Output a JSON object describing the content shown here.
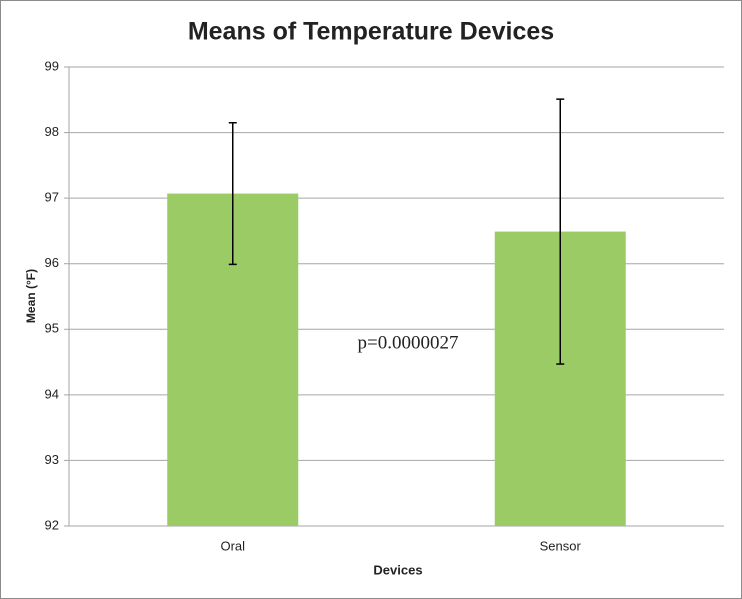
{
  "chart_data": {
    "type": "bar",
    "title": "Means of Temperature Devices",
    "x_label": "Devices",
    "y_label": "Mean (°F)",
    "categories": [
      "Oral",
      "Sensor"
    ],
    "values": [
      97.07,
      96.49
    ],
    "errors": [
      1.08,
      2.02
    ],
    "color": "#9bcb65",
    "error_color": "#000000",
    "ylim": [
      92,
      99
    ],
    "yticks": [
      92,
      93,
      94,
      95,
      96,
      97,
      98,
      99
    ],
    "grid": true,
    "annotation": "p=0.0000027"
  }
}
